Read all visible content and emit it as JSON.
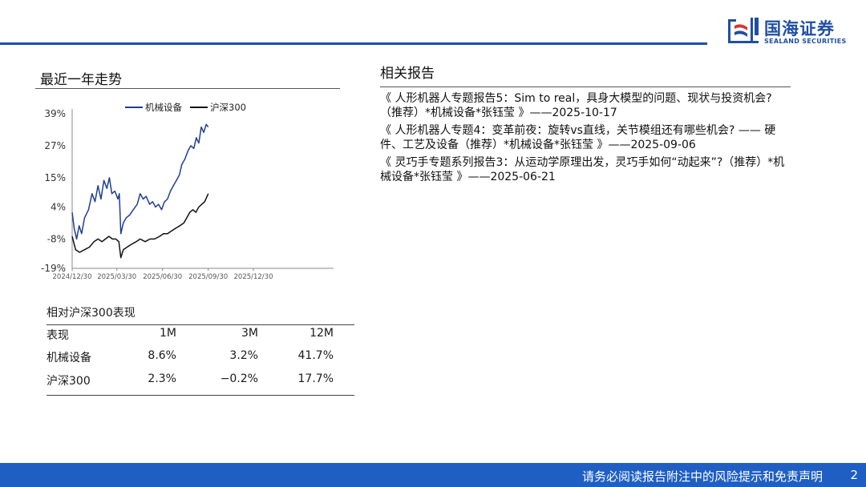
{
  "logo": {
    "cn": "国海证券",
    "en": "SEALAND SECURITIES"
  },
  "left": {
    "title": "最近一年走势",
    "table_title": "相对沪深300表现",
    "table": {
      "headers": [
        "表现",
        "1M",
        "3M",
        "12M"
      ],
      "rows": [
        [
          "机械设备",
          "8.6%",
          "3.2%",
          "41.7%"
        ],
        [
          "沪深300",
          "2.3%",
          "−0.2%",
          "17.7%"
        ]
      ]
    }
  },
  "right": {
    "title": "相关报告",
    "reports": [
      "《 人形机器人专题报告5：Sim to real，具身大模型的问题、现状与投资机会?（推荐）*机械设备*张钰莹 》——2025-10-17",
      "《 人形机器人专题4：变革前夜：旋转vs直线，关节模组还有哪些机会? —— 硬件、工艺及设备（推荐）*机械设备*张钰莹 》——2025-09-06",
      "《 灵巧手专题系列报告3：从运动学原理出发，灵巧手如何“动起来”?（推荐）*机械设备*张钰莹 》——2025-06-21"
    ]
  },
  "footer": {
    "text": "请务必阅读报告附注中的风险提示和免责声明",
    "page": "2"
  },
  "colors": {
    "brand": "#1f4fa3",
    "footer": "#1f5fc4",
    "series1": "#1f3f8f",
    "series2": "#111111"
  },
  "chart_data": {
    "type": "line",
    "yticks": [
      "39%",
      "27%",
      "15%",
      "4%",
      "-8%",
      "-19%"
    ],
    "ytick_values": [
      39,
      27,
      15,
      4,
      -8,
      -19
    ],
    "ylim": [
      -19,
      39
    ],
    "xticks": [
      "2024/12/30",
      "2025/03/30",
      "2025/06/30",
      "2025/09/30",
      "2025/12/30"
    ],
    "xlim": [
      "2024/12/30",
      "2025/12/30"
    ],
    "legend_position": "top",
    "series": [
      {
        "name": "机械设备",
        "color": "#1f3f8f",
        "points": [
          [
            "2024/12/30",
            2
          ],
          [
            "2025/01/03",
            -4
          ],
          [
            "2025/01/08",
            -8
          ],
          [
            "2025/01/13",
            -3
          ],
          [
            "2025/01/18",
            -6
          ],
          [
            "2025/01/24",
            0
          ],
          [
            "2025/02/01",
            3
          ],
          [
            "2025/02/08",
            9
          ],
          [
            "2025/02/14",
            6
          ],
          [
            "2025/02/20",
            12
          ],
          [
            "2025/02/26",
            7
          ],
          [
            "2025/03/04",
            14
          ],
          [
            "2025/03/10",
            11
          ],
          [
            "2025/03/15",
            15
          ],
          [
            "2025/03/20",
            9
          ],
          [
            "2025/03/26",
            10
          ],
          [
            "2025/04/01",
            7
          ],
          [
            "2025/04/04",
            9
          ],
          [
            "2025/04/07",
            -6
          ],
          [
            "2025/04/12",
            -2
          ],
          [
            "2025/04/18",
            0
          ],
          [
            "2025/04/25",
            1
          ],
          [
            "2025/05/02",
            3
          ],
          [
            "2025/05/10",
            5
          ],
          [
            "2025/05/16",
            9
          ],
          [
            "2025/05/22",
            7
          ],
          [
            "2025/05/28",
            8
          ],
          [
            "2025/06/04",
            5
          ],
          [
            "2025/06/10",
            6
          ],
          [
            "2025/06/16",
            4
          ],
          [
            "2025/06/22",
            5
          ],
          [
            "2025/06/28",
            3
          ],
          [
            "2025/07/04",
            6
          ],
          [
            "2025/07/10",
            7
          ],
          [
            "2025/07/16",
            10
          ],
          [
            "2025/07/22",
            12
          ],
          [
            "2025/07/28",
            14
          ],
          [
            "2025/08/03",
            16
          ],
          [
            "2025/08/08",
            20
          ],
          [
            "2025/08/14",
            22
          ],
          [
            "2025/08/20",
            25
          ],
          [
            "2025/08/26",
            27
          ],
          [
            "2025/09/01",
            26
          ],
          [
            "2025/09/06",
            30
          ],
          [
            "2025/09/11",
            28
          ],
          [
            "2025/09/16",
            34
          ],
          [
            "2025/09/21",
            32
          ],
          [
            "2025/09/26",
            35
          ],
          [
            "2025/09/30",
            34
          ]
        ]
      },
      {
        "name": "沪深300",
        "color": "#111111",
        "points": [
          [
            "2024/12/30",
            -7
          ],
          [
            "2025/01/06",
            -12
          ],
          [
            "2025/01/14",
            -13
          ],
          [
            "2025/01/24",
            -12
          ],
          [
            "2025/02/03",
            -11
          ],
          [
            "2025/02/12",
            -9
          ],
          [
            "2025/02/20",
            -8
          ],
          [
            "2025/02/28",
            -9
          ],
          [
            "2025/03/07",
            -8
          ],
          [
            "2025/03/14",
            -7
          ],
          [
            "2025/03/21",
            -8
          ],
          [
            "2025/03/28",
            -8
          ],
          [
            "2025/04/03",
            -9
          ],
          [
            "2025/04/07",
            -15
          ],
          [
            "2025/04/12",
            -12
          ],
          [
            "2025/04/20",
            -11
          ],
          [
            "2025/04/28",
            -10
          ],
          [
            "2025/05/08",
            -9
          ],
          [
            "2025/05/16",
            -8
          ],
          [
            "2025/05/26",
            -9
          ],
          [
            "2025/06/05",
            -8
          ],
          [
            "2025/06/14",
            -8
          ],
          [
            "2025/06/24",
            -7
          ],
          [
            "2025/07/02",
            -6
          ],
          [
            "2025/07/10",
            -6
          ],
          [
            "2025/07/18",
            -5
          ],
          [
            "2025/07/26",
            -4
          ],
          [
            "2025/08/04",
            -3
          ],
          [
            "2025/08/12",
            -2
          ],
          [
            "2025/08/18",
            0
          ],
          [
            "2025/08/24",
            2
          ],
          [
            "2025/08/30",
            3
          ],
          [
            "2025/09/05",
            2
          ],
          [
            "2025/09/11",
            4
          ],
          [
            "2025/09/17",
            5
          ],
          [
            "2025/09/23",
            6
          ],
          [
            "2025/09/30",
            9
          ]
        ]
      }
    ]
  }
}
